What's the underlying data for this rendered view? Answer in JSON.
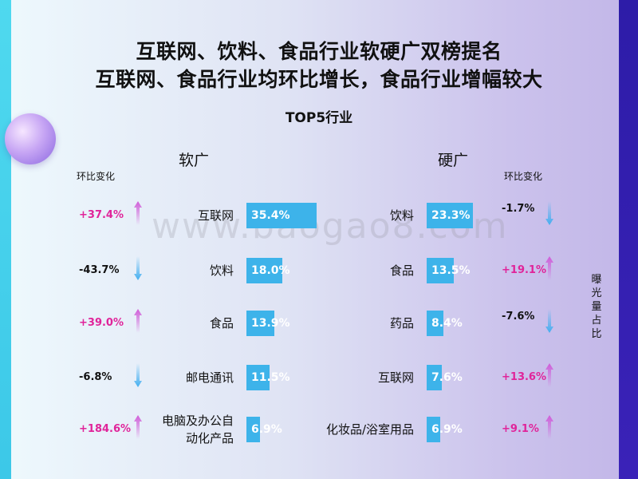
{
  "title_line1": "互联网、饮料、食品行业软硬广双榜提名",
  "title_line2": "互联网、食品行业均环比增长，食品行业增幅较大",
  "subtitle": "TOP5行业",
  "watermark": "www.baogao8.com",
  "side_label": "曝光量占比",
  "colors": {
    "bar": "#3db3ea",
    "up": "#e0249a",
    "down": "#111111",
    "arrow_up": "#d05bd8",
    "arrow_down": "#41aef0"
  },
  "chart_data": [
    {
      "type": "bar",
      "title": "软广",
      "change_header": "环比变化",
      "categories": [
        "互联网",
        "饮料",
        "食品",
        "邮电通讯",
        "电脑及办公自动化产品"
      ],
      "category_lines": [
        [
          "互联网"
        ],
        [
          "饮料"
        ],
        [
          "食品"
        ],
        [
          "邮电通讯"
        ],
        [
          "电脑及办公自",
          "动化产品"
        ]
      ],
      "values": [
        35.4,
        18.0,
        13.9,
        11.5,
        6.9
      ],
      "value_labels": [
        "35.4%",
        "18.0%",
        "13.9%",
        "11.5%",
        "6.9%"
      ],
      "changes": [
        "+37.4%",
        "-43.7%",
        "+39.0%",
        "-6.8%",
        "+184.6%"
      ],
      "directions": [
        "up",
        "down",
        "up",
        "down",
        "up"
      ]
    },
    {
      "type": "bar",
      "title": "硬广",
      "change_header": "环比变化",
      "categories": [
        "饮料",
        "食品",
        "药品",
        "互联网",
        "化妆品/浴室用品"
      ],
      "category_lines": [
        [
          "饮料"
        ],
        [
          "食品"
        ],
        [
          "药品"
        ],
        [
          "互联网"
        ],
        [
          "化妆品/浴室用品"
        ]
      ],
      "values": [
        23.3,
        13.5,
        8.4,
        7.6,
        6.9
      ],
      "value_labels": [
        "23.3%",
        "13.5%",
        "8.4%",
        "7.6%",
        "6.9%"
      ],
      "changes": [
        "-1.7%",
        "+19.1%",
        "-7.6%",
        "+13.6%",
        "+9.1%"
      ],
      "directions": [
        "down",
        "up",
        "down",
        "up",
        "up"
      ]
    }
  ]
}
